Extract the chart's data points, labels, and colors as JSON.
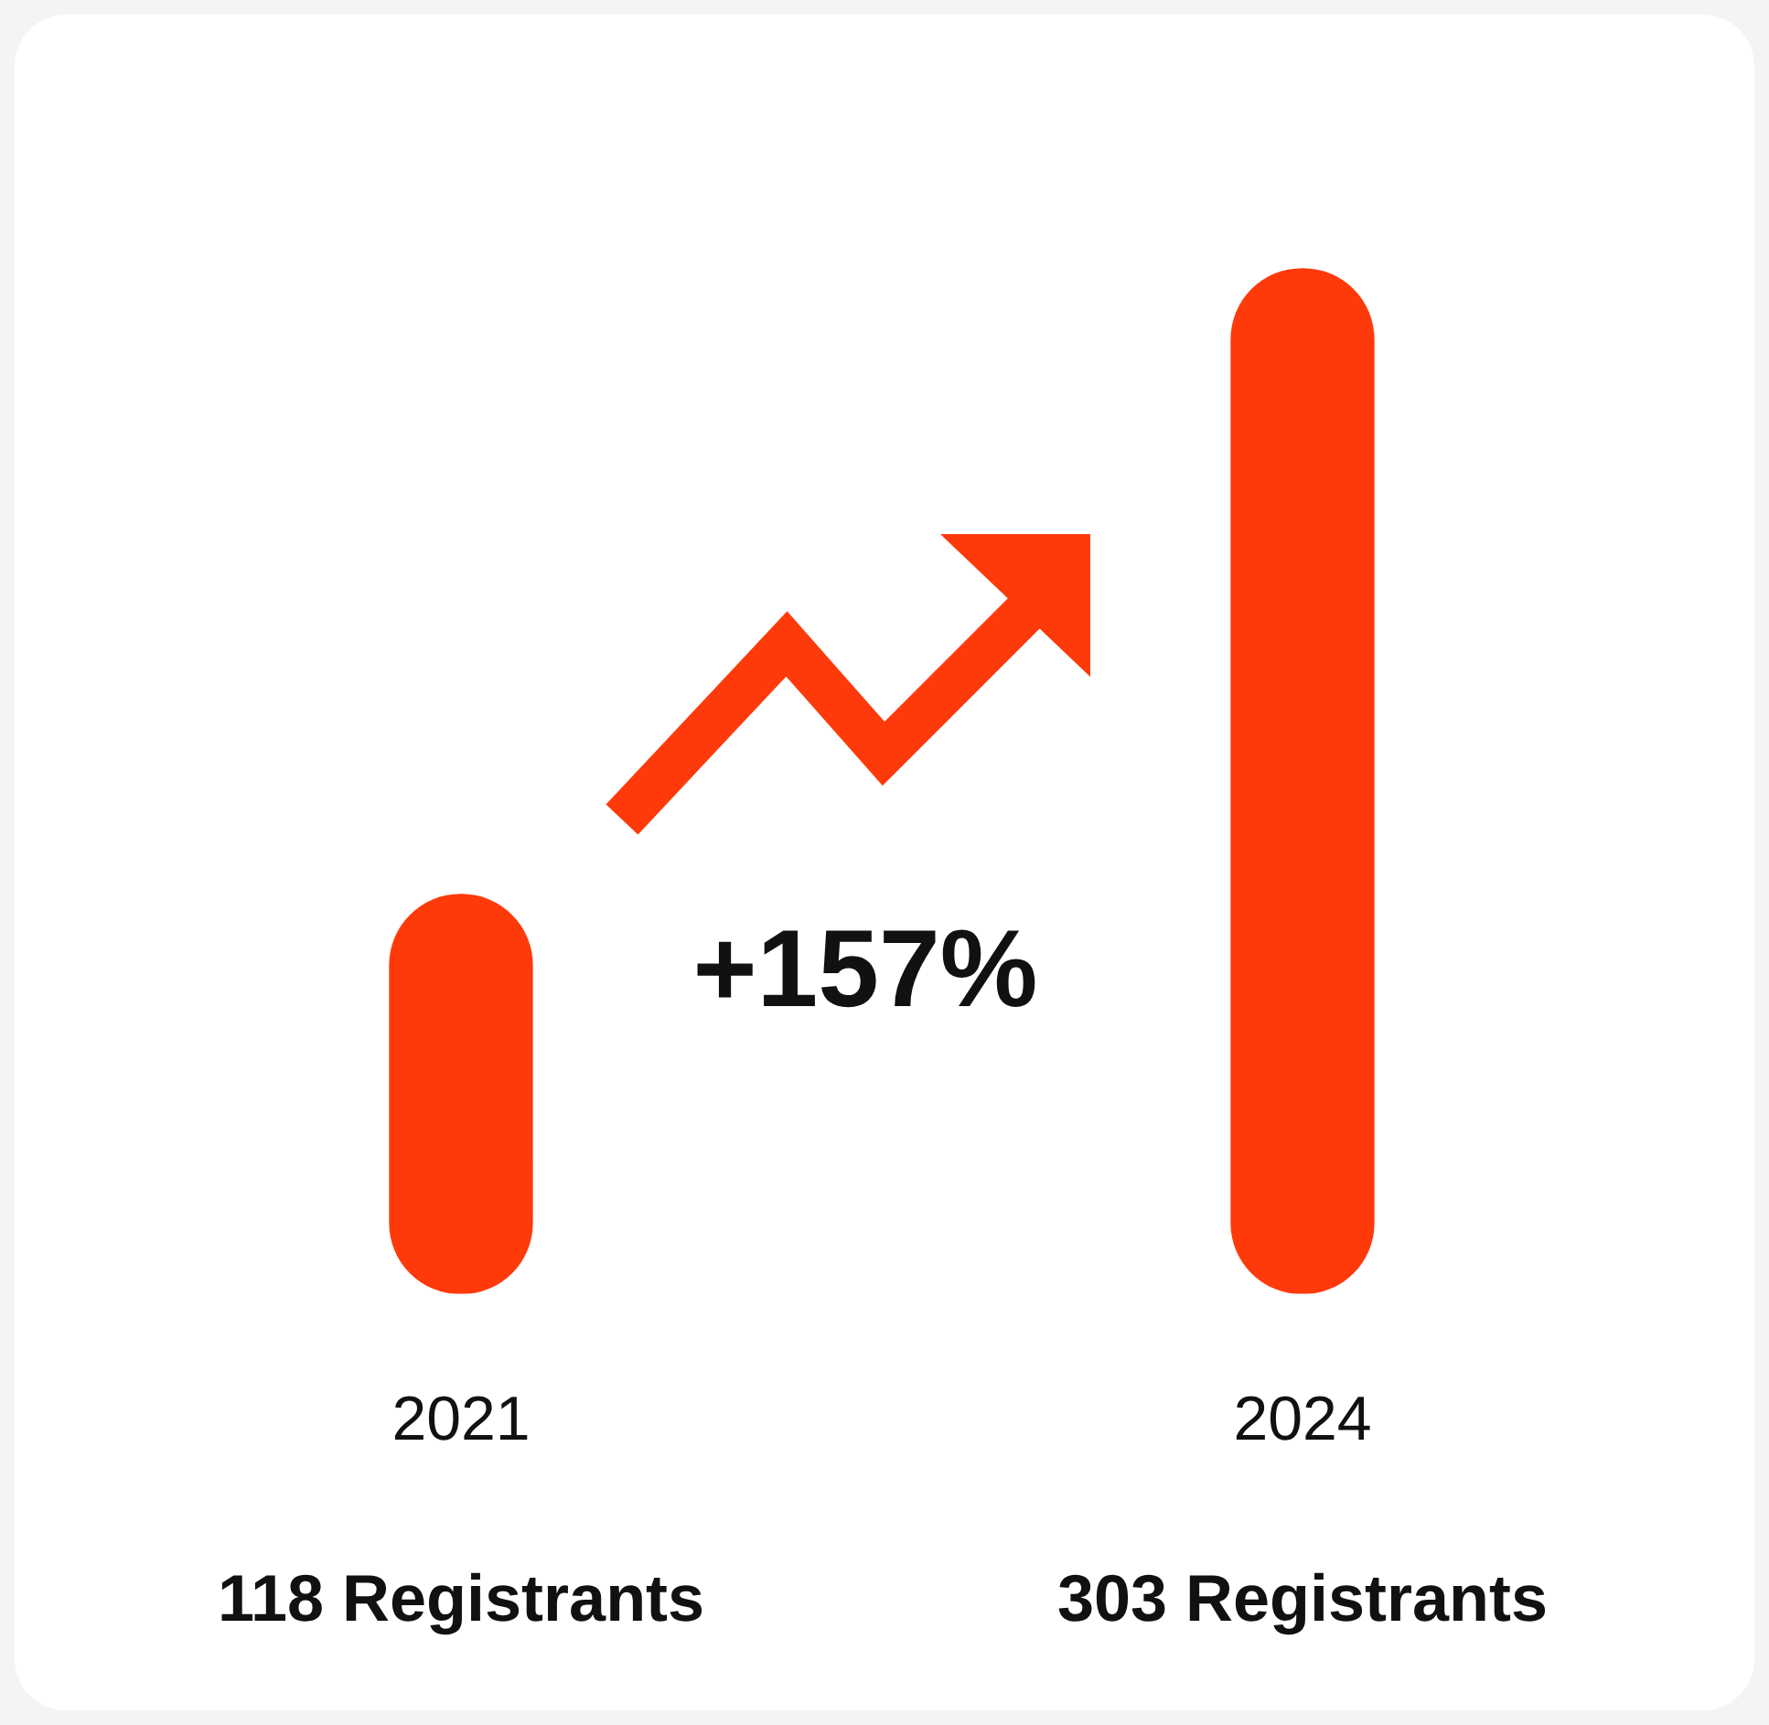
{
  "chart_data": {
    "type": "bar",
    "categories": [
      "2021",
      "2024"
    ],
    "values": [
      118,
      303
    ],
    "color": "#ff3a0a",
    "value_labels": [
      "118 Registrants",
      "303 Registrants"
    ],
    "annotations": [
      "+157%"
    ],
    "grid": false,
    "legend": false
  }
}
